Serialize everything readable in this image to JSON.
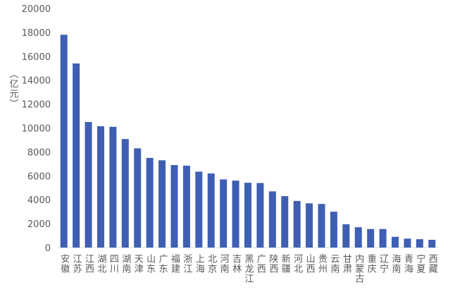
{
  "chart_data": {
    "type": "bar",
    "y_label": "（亿元）",
    "categories": [
      "安徽",
      "江苏",
      "江西",
      "湖北",
      "四川",
      "湖南",
      "天津",
      "山东",
      "广东",
      "福建",
      "浙江",
      "上海",
      "北京",
      "河南",
      "吉林",
      "黑龙江",
      "广西",
      "陕西",
      "新疆",
      "河北",
      "山西",
      "贵州",
      "云南",
      "甘肃",
      "内蒙古",
      "重庆",
      "辽宁",
      "海南",
      "青海",
      "宁夏",
      "西藏"
    ],
    "values": [
      17800,
      15400,
      10500,
      10150,
      10100,
      9080,
      8300,
      7500,
      7300,
      6900,
      6850,
      6350,
      6200,
      5700,
      5600,
      5420,
      5400,
      4700,
      4300,
      3900,
      3700,
      3650,
      3000,
      1950,
      1700,
      1550,
      1550,
      900,
      750,
      700,
      650
    ],
    "color": "#3e5fb3",
    "ylim": [
      0,
      20000
    ],
    "yticks": [
      0,
      2000,
      4000,
      6000,
      8000,
      10000,
      12000,
      14000,
      16000,
      18000,
      20000
    ]
  }
}
